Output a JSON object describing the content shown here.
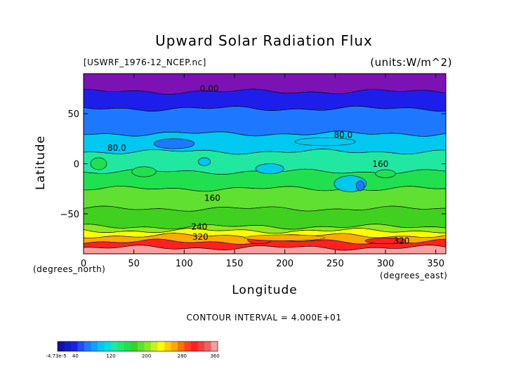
{
  "chart_data": {
    "type": "heatmap",
    "title": "Upward Solar Radiation Flux",
    "file_label": "[USWRF_1976-12_NCEP.nc]",
    "units_label": "(units:W/m^2)",
    "xlabel": "Longitude",
    "ylabel": "Latitude",
    "x_unit_label": "(degrees_east)",
    "y_unit_label": "(degrees_north)",
    "xlim": [
      0,
      360
    ],
    "ylim": [
      -90,
      90
    ],
    "x_ticks": [
      0,
      50,
      100,
      150,
      200,
      250,
      300,
      350
    ],
    "y_ticks": [
      -50,
      0,
      50
    ],
    "contour_interval_text": "CONTOUR INTERVAL = 4.000E+01",
    "contour_labels": [
      {
        "text": "0.00",
        "x": 125,
        "y": 72
      },
      {
        "text": "80.0",
        "x": 33,
        "y": 13
      },
      {
        "text": "80.0",
        "x": 258,
        "y": 26
      },
      {
        "text": "160",
        "x": 295,
        "y": -3
      },
      {
        "text": "160",
        "x": 128,
        "y": -37
      },
      {
        "text": "240",
        "x": 115,
        "y": -66
      },
      {
        "text": "320",
        "x": 116,
        "y": -76
      },
      {
        "text": "320",
        "x": 316,
        "y": -80
      }
    ],
    "bands": [
      {
        "lat_min": 72,
        "lat_max": 90,
        "color": "#7d12b4"
      },
      {
        "lat_min": 55,
        "lat_max": 72,
        "color": "#1e1eea"
      },
      {
        "lat_min": 30,
        "lat_max": 55,
        "color": "#1e78ff"
      },
      {
        "lat_min": 12,
        "lat_max": 30,
        "color": "#00c8f0"
      },
      {
        "lat_min": -8,
        "lat_max": 12,
        "color": "#20e8a0"
      },
      {
        "lat_min": -25,
        "lat_max": -8,
        "color": "#20e050"
      },
      {
        "lat_min": -45,
        "lat_max": -25,
        "color": "#60e030"
      },
      {
        "lat_min": -63,
        "lat_max": -45,
        "color": "#40d020"
      },
      {
        "lat_min": -67,
        "lat_max": -63,
        "color": "#90e820"
      },
      {
        "lat_min": -72,
        "lat_max": -67,
        "color": "#ffff00"
      },
      {
        "lat_min": -78,
        "lat_max": -72,
        "color": "#ffaa00"
      },
      {
        "lat_min": -84,
        "lat_max": -78,
        "color": "#ff2020"
      },
      {
        "lat_min": -90,
        "lat_max": -84,
        "color": "#f5a0a0"
      }
    ],
    "patches": [
      {
        "lon": 15,
        "lat": 0,
        "rlon": 8,
        "rlat": 6,
        "color": "#20e050"
      },
      {
        "lon": 60,
        "lat": -8,
        "rlon": 12,
        "rlat": 5,
        "color": "#20e050"
      },
      {
        "lon": 120,
        "lat": 2,
        "rlon": 6,
        "rlat": 4,
        "color": "#00c8f0"
      },
      {
        "lon": 185,
        "lat": -5,
        "rlon": 14,
        "rlat": 5,
        "color": "#00c8f0"
      },
      {
        "lon": 265,
        "lat": -20,
        "rlon": 16,
        "rlat": 8,
        "color": "#00c8f0"
      },
      {
        "lon": 275,
        "lat": -22,
        "rlon": 4,
        "rlat": 5,
        "color": "#1e78ff"
      },
      {
        "lon": 300,
        "lat": -10,
        "rlon": 10,
        "rlat": 4,
        "color": "#20e050"
      },
      {
        "lon": 90,
        "lat": 20,
        "rlon": 20,
        "rlat": 5,
        "color": "#1e78ff"
      },
      {
        "lon": 240,
        "lat": 22,
        "rlon": 30,
        "rlat": 4,
        "color": "#00c8f0"
      },
      {
        "lon": 175,
        "lat": -76,
        "rlon": 12,
        "rlat": 4,
        "color": "#ff2020"
      },
      {
        "lon": 300,
        "lat": -77,
        "rlon": 20,
        "rlat": 3,
        "color": "#ff2020"
      },
      {
        "lon": 200,
        "lat": -74,
        "rlon": 40,
        "rlat": 3,
        "color": "#ffaa00"
      }
    ],
    "colorbar": {
      "min_label": "-4.73e-5",
      "labels": [
        40,
        120,
        200,
        280,
        360
      ],
      "segments": [
        "#1010a0",
        "#1020c0",
        "#1e1eea",
        "#1e50f0",
        "#1e78ff",
        "#10a0ff",
        "#00c8f0",
        "#00e0e0",
        "#20e8a0",
        "#20e870",
        "#20e050",
        "#40d020",
        "#60e030",
        "#90e820",
        "#c8f020",
        "#ffff00",
        "#ffd000",
        "#ffaa00",
        "#ff7000",
        "#ff4020",
        "#ff2020",
        "#f04040",
        "#f06060",
        "#f5a0a0"
      ]
    }
  }
}
